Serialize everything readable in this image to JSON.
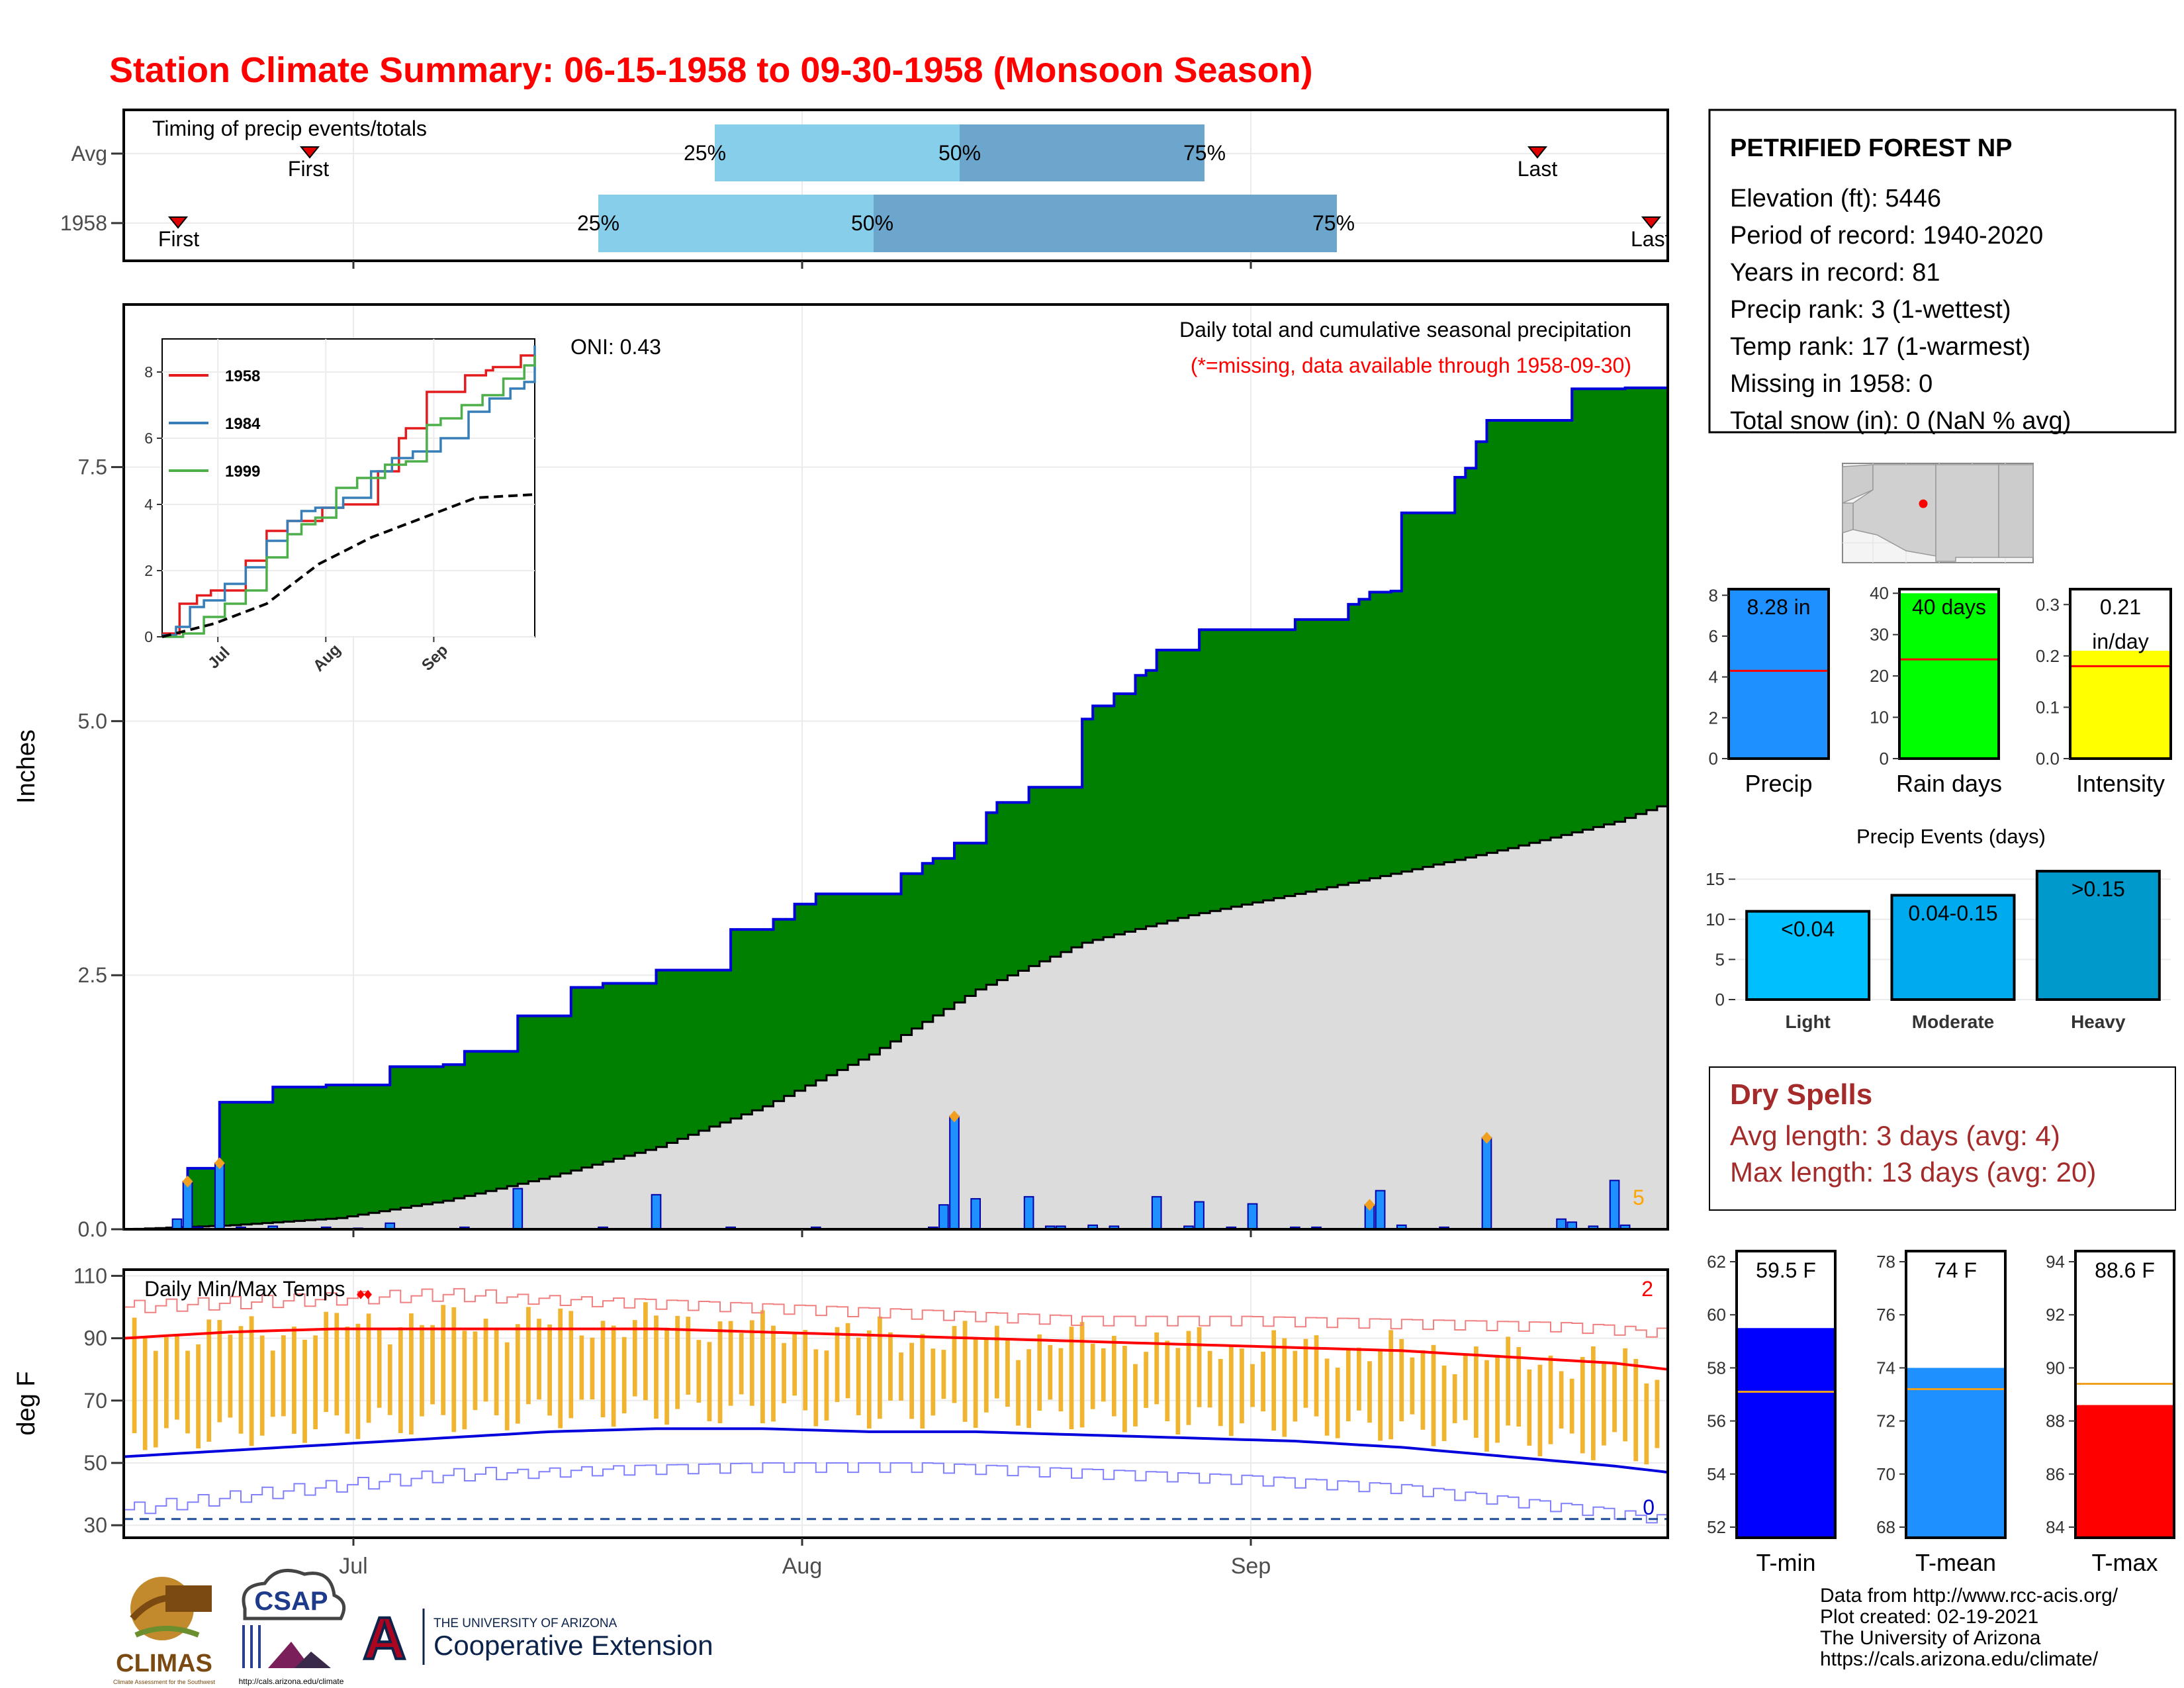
{
  "title": "Station Climate Summary: 06-15-1958 to 09-30-1958 (Monsoon Season)",
  "timing": {
    "label": "Timing of precip events/totals",
    "rows": [
      "Avg",
      "1958"
    ],
    "avg": {
      "first": "First",
      "last": "Last",
      "p25": "25%",
      "p50": "50%",
      "p75": "75%"
    },
    "y1958": {
      "first": "First",
      "last": "Last",
      "p25": "25%",
      "p50": "50%",
      "p75": "75%"
    }
  },
  "main_chart": {
    "ylabel": "Inches",
    "oni": "ONI: 0.43",
    "legend_title": "Daily total and cumulative seasonal precipitation",
    "legend_note": "(*=missing, data available through 1958-09-30)",
    "extreme_count": "5",
    "yticks": [
      "0.0",
      "2.5",
      "5.0",
      "7.5"
    ]
  },
  "inset": {
    "yticks": [
      "0",
      "2",
      "4",
      "6",
      "8"
    ],
    "xticks": [
      "Jul",
      "Aug",
      "Sep"
    ],
    "legend": [
      "1958",
      "1984",
      "1999"
    ]
  },
  "temp_chart": {
    "ylabel": "deg F",
    "label": "Daily Min/Max Temps",
    "yticks": [
      "30",
      "50",
      "70",
      "90",
      "110"
    ],
    "xticks": [
      "Jul",
      "Aug",
      "Sep"
    ],
    "record_high_count": "2",
    "record_low_count": "0"
  },
  "station": {
    "name": "PETRIFIED FOREST NP",
    "lines": [
      "Elevation (ft): 5446",
      "Period of record: 1940-2020",
      "Years in record: 81",
      "Precip rank: 3 (1-wettest)",
      "Temp rank: 17 (1-warmest)",
      "Missing in 1958: 0",
      "Total snow (in): 0 (NaN % avg)"
    ]
  },
  "summary_bars": {
    "precip": {
      "label": "Precip",
      "value_text": "8.28 in",
      "yticks": [
        "0",
        "2",
        "4",
        "6",
        "8"
      ]
    },
    "rain_days": {
      "label": "Rain days",
      "value_text": "40 days",
      "yticks": [
        "0",
        "10",
        "20",
        "30",
        "40"
      ]
    },
    "intensity": {
      "label": "Intensity",
      "value_text": "0.21",
      "value_text2": "in/day",
      "yticks": [
        "0.0",
        "0.1",
        "0.2",
        "0.3"
      ]
    }
  },
  "precip_events": {
    "title": "Precip Events (days)",
    "yticks": [
      "0",
      "5",
      "10",
      "15"
    ],
    "categories": [
      "Light",
      "Moderate",
      "Heavy"
    ],
    "labels": [
      "<0.04",
      "0.04-0.15",
      ">0.15"
    ]
  },
  "dry_spells": {
    "title": "Dry Spells",
    "avg": "Avg length: 3 days (avg: 4)",
    "max": "Max length: 13 days (avg: 20)"
  },
  "temp_bars": {
    "tmin": {
      "label": "T-min",
      "value_text": "59.5 F",
      "yticks": [
        "52",
        "54",
        "56",
        "58",
        "60",
        "62"
      ]
    },
    "tmean": {
      "label": "T-mean",
      "value_text": "74 F",
      "yticks": [
        "68",
        "70",
        "72",
        "74",
        "76",
        "78"
      ]
    },
    "tmax": {
      "label": "T-max",
      "value_text": "88.6 F",
      "yticks": [
        "84",
        "86",
        "88",
        "90",
        "92",
        "94"
      ]
    }
  },
  "footer": {
    "lines": [
      "Data from http://www.rcc-acis.org/",
      "Plot created: 02-19-2021",
      "The University of Arizona",
      "https://cals.arizona.edu/climate/"
    ]
  },
  "logos": {
    "climas": "CLIMAS",
    "climas_sub": "Climate Assessment for the Southwest",
    "csap": "CSAP",
    "csap_url": "http://cals.arizona.edu/climate",
    "ua_top": "THE UNIVERSITY OF ARIZONA",
    "ua_bottom": "Cooperative Extension",
    "ua_mark": "A"
  },
  "chart_data": [
    {
      "type": "area",
      "title": "Daily total and cumulative seasonal precipitation",
      "xlabel": "",
      "ylabel": "Inches",
      "x_range": [
        "1958-06-15",
        "1958-09-30"
      ],
      "xticks": [
        "Jul",
        "Aug",
        "Sep"
      ],
      "ylim": [
        0,
        9.1
      ],
      "series": [
        {
          "name": "1958",
          "kind": "cumulative",
          "x": [
            0,
            6,
            9,
            11,
            14,
            19,
            25,
            30,
            32,
            37,
            42,
            45,
            50,
            57,
            61,
            63,
            65,
            73,
            75,
            76,
            78,
            81,
            82,
            85,
            90,
            91,
            93,
            95,
            96,
            97,
            101,
            110,
            115,
            116,
            117,
            119,
            120,
            125,
            126,
            127,
            128,
            136,
            141,
            145
          ],
          "y": [
            0,
            0.6,
            1.25,
            1.25,
            1.4,
            1.42,
            1.6,
            1.62,
            1.75,
            2.1,
            2.38,
            2.42,
            2.55,
            2.95,
            3.05,
            3.2,
            3.3,
            3.5,
            3.6,
            3.65,
            3.8,
            4.1,
            4.2,
            4.35,
            5.02,
            5.15,
            5.27,
            5.45,
            5.5,
            5.7,
            5.9,
            6.0,
            6.15,
            6.2,
            6.27,
            6.28,
            7.05,
            7.4,
            7.49,
            7.75,
            7.96,
            8.27,
            8.28,
            8.28
          ]
        },
        {
          "name": "Avg",
          "kind": "cumulative",
          "x": [
            0,
            10,
            20,
            30,
            40,
            50,
            60,
            70,
            80,
            90,
            100,
            110,
            120,
            130,
            140,
            145
          ],
          "y": [
            0,
            0.04,
            0.11,
            0.28,
            0.52,
            0.81,
            1.21,
            1.72,
            2.36,
            2.82,
            3.09,
            3.3,
            3.52,
            3.75,
            4.01,
            4.2
          ]
        },
        {
          "name": "daily",
          "kind": "bar",
          "x": [
            5,
            6,
            7,
            9,
            11,
            14,
            19,
            22,
            25,
            32,
            37,
            45,
            50,
            57,
            65,
            76,
            77,
            78,
            80,
            85,
            87,
            88,
            91,
            93,
            97,
            100,
            101,
            104,
            106,
            110,
            112,
            117,
            118,
            120,
            124,
            128,
            135,
            136,
            138,
            140,
            141
          ],
          "y": [
            0.1,
            0.47,
            0.02,
            0.65,
            0.02,
            0.03,
            0.02,
            0.01,
            0.06,
            0.02,
            0.4,
            0.02,
            0.34,
            0.02,
            0.02,
            0.02,
            0.24,
            1.11,
            0.3,
            0.32,
            0.03,
            0.03,
            0.04,
            0.03,
            0.32,
            0.03,
            0.27,
            0.02,
            0.25,
            0.02,
            0.02,
            0.24,
            0.38,
            0.04,
            0.02,
            0.9,
            0.1,
            0.07,
            0.03,
            0.48,
            0.04
          ]
        }
      ]
    },
    {
      "type": "line",
      "title": "",
      "ylabel": "",
      "xticks": [
        "Jul",
        "Aug",
        "Sep"
      ],
      "ylim": [
        0,
        9
      ],
      "series": [
        {
          "name": "1958",
          "x": [
            0,
            5,
            10,
            14,
            24,
            30,
            36,
            46,
            52,
            62,
            68,
            70,
            76,
            87,
            93,
            95,
            103,
            107
          ],
          "y": [
            0.1,
            1.0,
            1.25,
            1.4,
            2.3,
            3.2,
            3.5,
            3.9,
            4.0,
            5.0,
            6.0,
            6.3,
            7.4,
            7.9,
            8.05,
            8.15,
            8.5,
            8.5
          ]
        },
        {
          "name": "1984",
          "x": [
            0,
            4,
            8,
            12,
            18,
            24,
            30,
            36,
            40,
            44,
            52,
            60,
            66,
            72,
            80,
            88,
            94,
            100,
            104,
            107
          ],
          "y": [
            0.05,
            0.3,
            0.9,
            1.1,
            1.6,
            2.1,
            2.9,
            3.5,
            3.8,
            3.9,
            4.2,
            5.0,
            5.4,
            5.6,
            6.0,
            6.8,
            7.2,
            7.5,
            7.7,
            8.8
          ]
        },
        {
          "name": "1999",
          "x": [
            0,
            6,
            12,
            18,
            24,
            30,
            36,
            40,
            44,
            50,
            56,
            64,
            70,
            76,
            80,
            86,
            92,
            98,
            104,
            107
          ],
          "y": [
            0,
            0.1,
            0.6,
            1.0,
            1.4,
            2.4,
            3.1,
            3.4,
            3.6,
            4.5,
            4.8,
            5.2,
            5.3,
            6.4,
            6.6,
            7.0,
            7.3,
            7.8,
            8.2,
            8.5
          ]
        },
        {
          "name": "Avg",
          "dashed": true,
          "x": [
            0,
            15,
            30,
            45,
            60,
            75,
            90,
            107
          ],
          "y": [
            0,
            0.4,
            1.0,
            2.2,
            3.0,
            3.6,
            4.2,
            4.3
          ]
        }
      ]
    },
    {
      "type": "bar",
      "title": "Daily Min/Max Temps",
      "ylabel": "deg F",
      "xticks": [
        "Jul",
        "Aug",
        "Sep"
      ],
      "ylim": [
        26,
        112
      ],
      "series": [
        {
          "name": "normal_max",
          "x": [
            0,
            10,
            20,
            30,
            40,
            50,
            60,
            70,
            80,
            90,
            100,
            110,
            120,
            130,
            140,
            145
          ],
          "y": [
            90,
            92,
            93,
            93,
            93,
            93,
            92,
            91,
            90,
            89,
            88,
            87,
            86,
            84,
            82,
            80
          ]
        },
        {
          "name": "normal_min",
          "x": [
            0,
            10,
            20,
            30,
            40,
            50,
            60,
            70,
            80,
            90,
            100,
            110,
            120,
            130,
            140,
            145
          ],
          "y": [
            52,
            54,
            56,
            58,
            60,
            61,
            61,
            60,
            60,
            59,
            58,
            57,
            55,
            52,
            49,
            47
          ]
        },
        {
          "name": "record_high",
          "x": [
            0,
            15,
            30,
            45,
            60,
            75,
            90,
            105,
            120,
            135,
            145
          ],
          "y": [
            100,
            102,
            104,
            102,
            100,
            98,
            96,
            96,
            95,
            94,
            92
          ]
        },
        {
          "name": "record_low",
          "x": [
            0,
            15,
            30,
            45,
            60,
            75,
            90,
            105,
            120,
            135,
            145
          ],
          "y": [
            35,
            41,
            46,
            48,
            49,
            49,
            47,
            45,
            42,
            36,
            32
          ]
        },
        {
          "name": "freeze",
          "y_constant": 32
        }
      ]
    },
    {
      "type": "bar",
      "title": "",
      "categories": [
        "Precip",
        "Rain days",
        "Intensity"
      ],
      "series": [
        {
          "name": "observed",
          "values": [
            8.28,
            40,
            0.21
          ]
        },
        {
          "name": "average",
          "values": [
            4.3,
            24,
            0.18
          ]
        }
      ],
      "ylims": [
        [
          0,
          8.3
        ],
        [
          0,
          41
        ],
        [
          0,
          0.33
        ]
      ]
    },
    {
      "type": "bar",
      "title": "Precip Events (days)",
      "categories": [
        "Light",
        "Moderate",
        "Heavy"
      ],
      "values": [
        11,
        13,
        16
      ],
      "ylim": [
        0,
        16.5
      ]
    },
    {
      "type": "bar",
      "title": "",
      "categories": [
        "T-min",
        "T-mean",
        "T-max"
      ],
      "series": [
        {
          "name": "observed",
          "values": [
            59.5,
            74,
            88.6
          ]
        },
        {
          "name": "average",
          "values": [
            57.1,
            73.2,
            89.4
          ]
        }
      ],
      "ylims": [
        [
          51.6,
          62.4
        ],
        [
          67.6,
          78.4
        ],
        [
          83.6,
          94.4
        ]
      ]
    }
  ]
}
